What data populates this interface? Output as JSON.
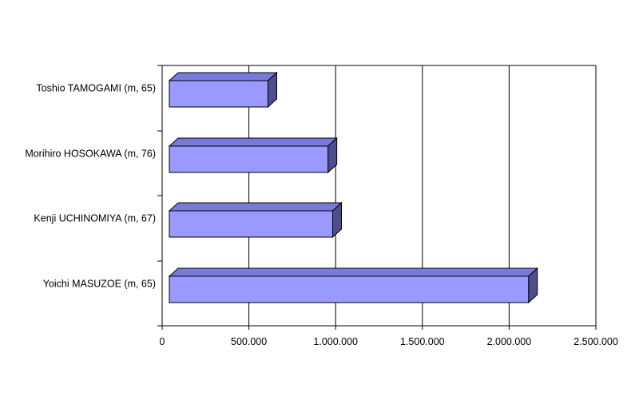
{
  "chart_data": {
    "type": "bar",
    "orientation": "horizontal",
    "style": "3d",
    "categories": [
      "Toshio TAMOGAMI (m, 65)",
      "Morihiro HOSOKAWA (m, 76)",
      "Kenji UCHINOMIYA (m, 67)",
      "Yoichi MASUZOE (m, 65)"
    ],
    "values": [
      610000,
      956000,
      983000,
      2112000
    ],
    "xlim": [
      0,
      2500000
    ],
    "x_ticks": [
      0,
      500000,
      1000000,
      1500000,
      2000000,
      2500000
    ],
    "x_tick_labels": [
      "0",
      "500.000",
      "1.000.000",
      "1.500.000",
      "2.000.000",
      "2.500.000"
    ],
    "gridlines": "vertical",
    "legend": "none",
    "colors": {
      "bar_front": "#9999ff",
      "bar_top": "#7a7adb",
      "bar_side": "#4e4e8c",
      "bar_edge": "#000000",
      "grid": "#000000",
      "background": "#ffffff"
    }
  }
}
